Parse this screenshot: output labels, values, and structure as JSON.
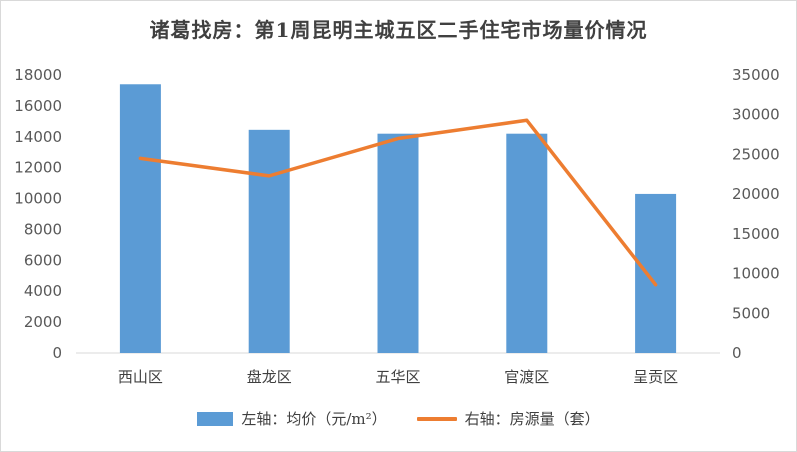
{
  "chart_data": {
    "type": "bar",
    "title": "诸葛找房：第1周昆明主城五区二手住宅市场量价情况",
    "categories": [
      "西山区",
      "盘龙区",
      "五华区",
      "官渡区",
      "呈贡区"
    ],
    "series": [
      {
        "name": "左轴：均价（元/m²）",
        "type": "bar",
        "axis": "left",
        "color": "#5b9bd5",
        "values": [
          17400,
          14450,
          14200,
          14200,
          10300
        ]
      },
      {
        "name": "右轴：房源量（套）",
        "type": "line",
        "axis": "right",
        "color": "#ed7d31",
        "values": [
          24500,
          22300,
          27000,
          29300,
          8600
        ]
      }
    ],
    "y_left": {
      "min": 0,
      "max": 18000,
      "step": 2000
    },
    "y_right": {
      "min": 0,
      "max": 35000,
      "step": 5000
    },
    "grid": false,
    "legend": "bottom"
  }
}
